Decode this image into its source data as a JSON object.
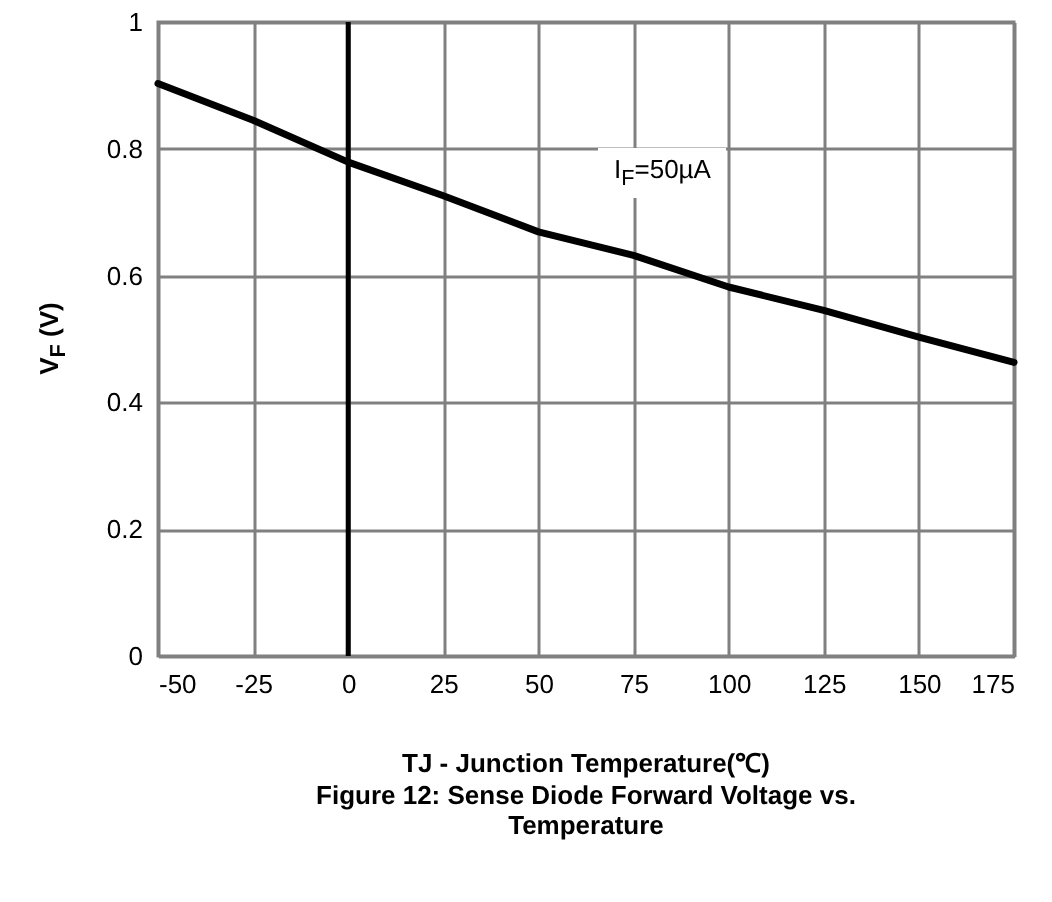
{
  "chart_data": {
    "type": "line",
    "title": "Figure 12: Sense Diode Forward Voltage vs. Temperature",
    "xlabel": "TJ - Junction Temperature(℃)",
    "ylabel": "V$_{F}$ (V)",
    "annotations": [
      "I$_{F}$=50µA"
    ],
    "x": [
      -50,
      -25,
      0,
      25,
      50,
      75,
      100,
      125,
      150,
      175
    ],
    "series": [
      {
        "color": "#000000",
        "values": [
          0.903,
          0.845,
          0.779,
          0.726,
          0.669,
          0.632,
          0.582,
          0.545,
          0.503,
          0.463
        ]
      }
    ],
    "xlim": [
      -50,
      175
    ],
    "xticks": [
      -50,
      -25,
      0,
      25,
      50,
      75,
      100,
      125,
      150,
      175
    ],
    "ylim": [
      0,
      1
    ],
    "yticks": [
      0,
      0.2,
      0.4,
      0.6,
      0.8,
      1
    ],
    "grid": true,
    "marker": "none",
    "line_style": "solid",
    "ref_lines": [
      {
        "axis": "x",
        "value": 0,
        "color": "#000000",
        "line_style": "solid"
      }
    ]
  }
}
